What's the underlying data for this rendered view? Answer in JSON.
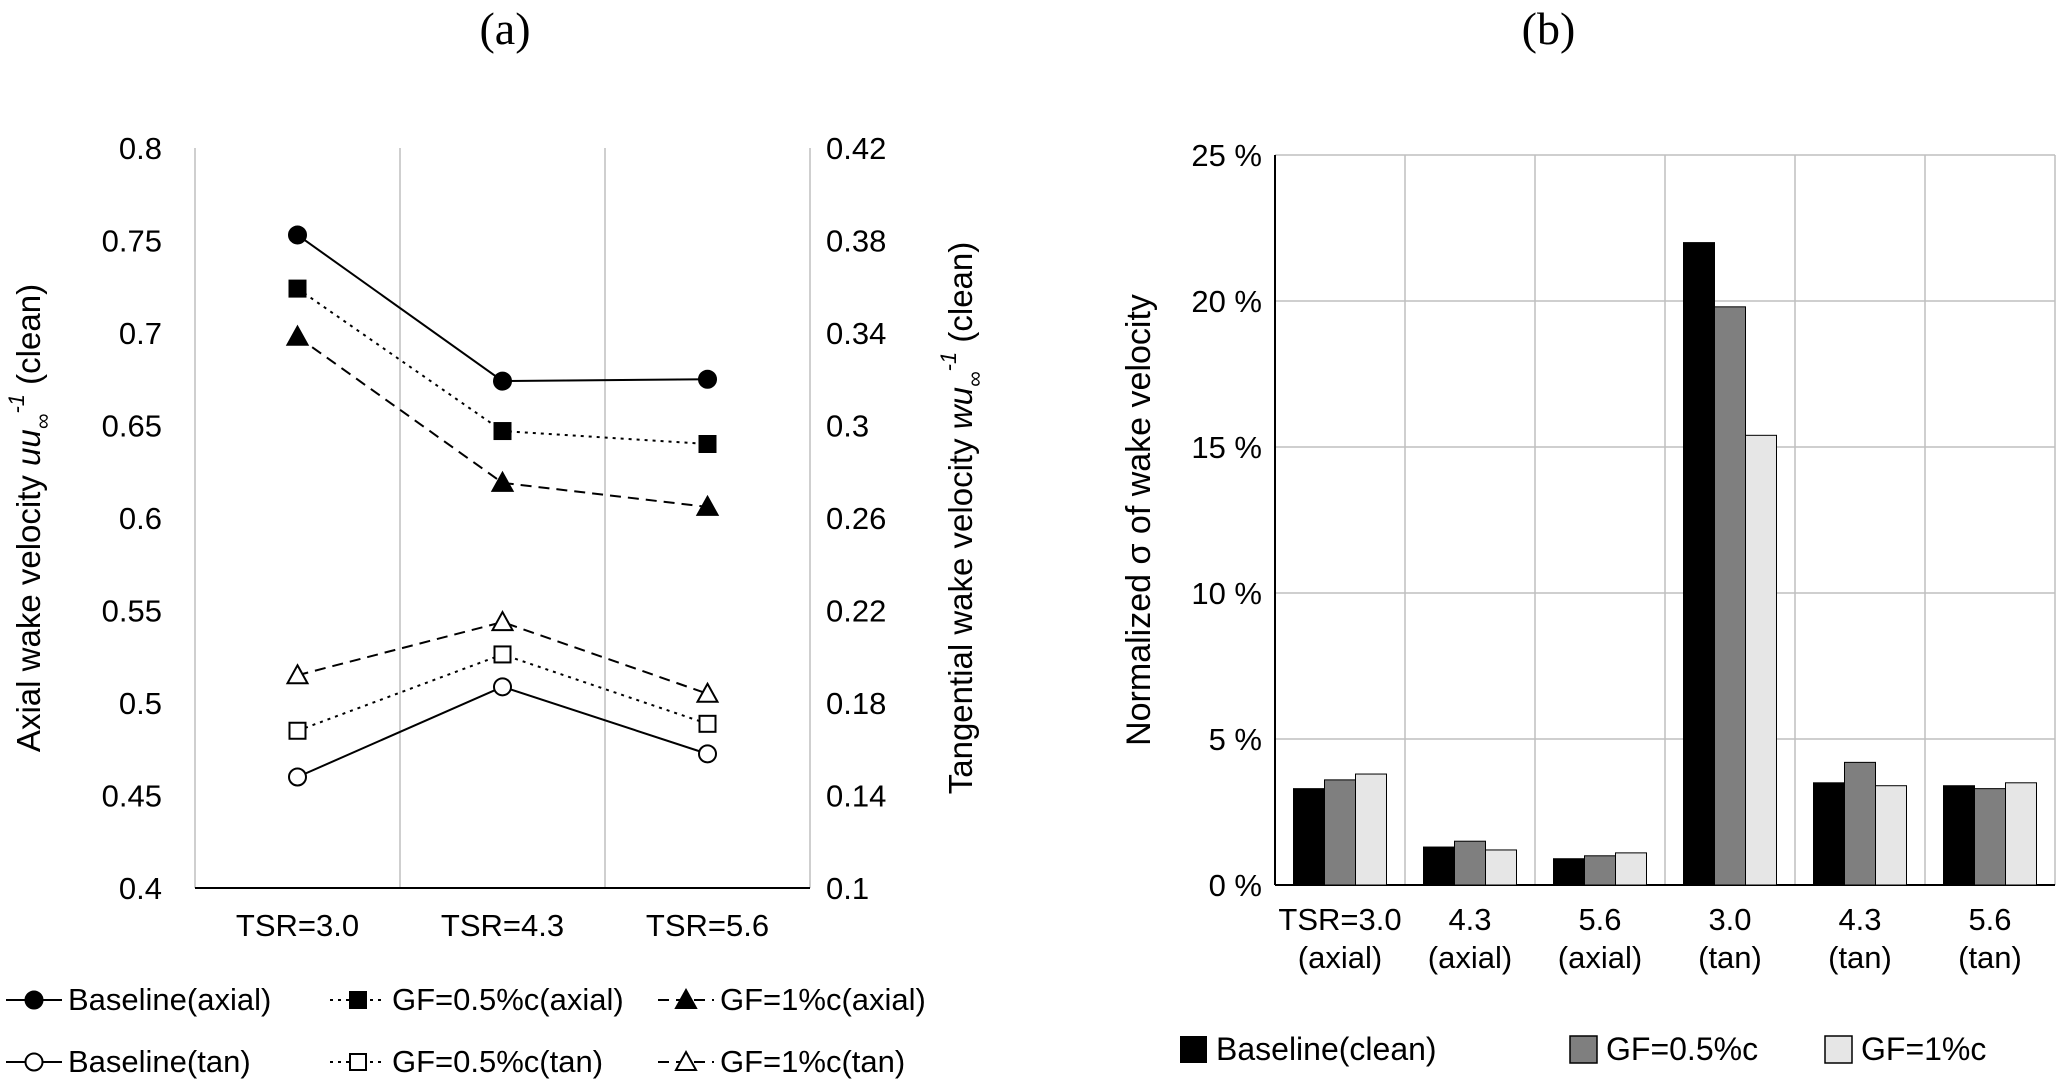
{
  "chart_data": [
    {
      "type": "line",
      "panel_label": "(a)",
      "categories": [
        "TSR=3.0",
        "TSR=4.3",
        "TSR=5.6"
      ],
      "left_axis": {
        "title_prefix": "Axial wake velocity",
        "title_math": "uu",
        "title_sub": "∞",
        "title_sup": "-1",
        "title_suffix": "(clean)",
        "min": 0.4,
        "max": 0.8,
        "tick_labels_top_to_bottom": [
          "0.8",
          "0.75",
          "0.7",
          "0.65",
          "0.6",
          "0.55",
          "0.5",
          "0.45",
          "0.4"
        ]
      },
      "right_axis": {
        "title_prefix": "Tangential wake velocity",
        "title_math": "wu",
        "title_sub": "∞",
        "title_sup": "-1",
        "title_suffix": "(clean)",
        "min": 0.1,
        "max": 0.42,
        "tick_labels_top_to_bottom": [
          "0.42",
          "0.38",
          "0.34",
          "0.3",
          "0.26",
          "0.22",
          "0.18",
          "0.14",
          "0.1"
        ]
      },
      "series": [
        {
          "name": "Baseline(axial)",
          "axis": "left",
          "marker": "circle",
          "fill": "filled",
          "line": "solid",
          "values": [
            0.753,
            0.674,
            0.675
          ]
        },
        {
          "name": "GF=0.5%c(axial)",
          "axis": "left",
          "marker": "square",
          "fill": "filled",
          "line": "dot",
          "values": [
            0.724,
            0.647,
            0.64
          ]
        },
        {
          "name": "GF=1%c(axial)",
          "axis": "left",
          "marker": "triangle",
          "fill": "filled",
          "line": "dash",
          "values": [
            0.698,
            0.619,
            0.606
          ]
        },
        {
          "name": "Baseline(tan)",
          "axis": "right",
          "marker": "circle",
          "fill": "open",
          "line": "solid",
          "values": [
            0.148,
            0.187,
            0.158
          ]
        },
        {
          "name": "GF=0.5%c(tan)",
          "axis": "right",
          "marker": "square",
          "fill": "open",
          "line": "dot",
          "values": [
            0.168,
            0.201,
            0.171
          ]
        },
        {
          "name": "GF=1%c(tan)",
          "axis": "right",
          "marker": "triangle",
          "fill": "open",
          "line": "dash",
          "values": [
            0.192,
            0.215,
            0.184
          ]
        }
      ],
      "legend_rows": [
        [
          "Baseline(axial)",
          "GF=0.5%c(axial)",
          "GF=1%c(axial)"
        ],
        [
          "Baseline(tan)",
          "GF=0.5%c(tan)",
          "GF=1%c(tan)"
        ]
      ]
    },
    {
      "type": "bar",
      "panel_label": "(b)",
      "ylabel": "Normalized σ of wake velocity",
      "ylim": [
        0,
        25
      ],
      "ytick_labels_bottom_to_top": [
        "0 %",
        "5 %",
        "10 %",
        "15 %",
        "20 %",
        "25 %"
      ],
      "categories_line1": [
        "TSR=3.0",
        "4.3",
        "5.6",
        "3.0",
        "4.3",
        "5.6"
      ],
      "categories_line2": [
        "(axial)",
        "(axial)",
        "(axial)",
        "(tan)",
        "(tan)",
        "(tan)"
      ],
      "series": [
        {
          "name": "Baseline(clean)",
          "color": "#000000",
          "values": [
            3.3,
            1.3,
            0.9,
            22.0,
            3.5,
            3.4
          ]
        },
        {
          "name": "GF=0.5%c",
          "color": "#7f7f7f",
          "values": [
            3.6,
            1.5,
            1.0,
            19.8,
            4.2,
            3.3
          ]
        },
        {
          "name": "GF=1%c",
          "color": "#e6e6e6",
          "values": [
            3.8,
            1.2,
            1.1,
            15.4,
            3.4,
            3.5
          ]
        }
      ]
    }
  ]
}
